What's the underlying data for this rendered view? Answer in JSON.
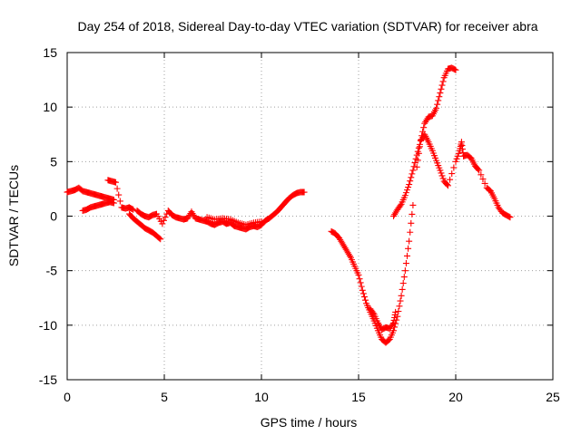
{
  "chart_data": {
    "type": "scatter",
    "title": "Day 254 of 2018, Sidereal Day-to-day VTEC variation (SDTVAR) for receiver abra",
    "xlabel": "GPS time / hours",
    "ylabel": "SDTVAR / TECUs",
    "xlim": [
      0,
      25
    ],
    "ylim": [
      -15,
      15
    ],
    "x_ticks": [
      0,
      5,
      10,
      15,
      20,
      25
    ],
    "x_tick_labels": [
      "0",
      "5",
      "10",
      "15",
      "20",
      "25"
    ],
    "y_ticks": [
      -15,
      -10,
      -5,
      0,
      5,
      10,
      15
    ],
    "y_tick_labels": [
      "-15",
      "-10",
      "-5",
      "0",
      "5",
      "10",
      "15"
    ],
    "grid": true,
    "marker": "plus",
    "series": [
      {
        "name": "SDTVAR",
        "color": "#ff0000",
        "points": [
          [
            0.0,
            2.2
          ],
          [
            0.2,
            2.3
          ],
          [
            0.4,
            2.4
          ],
          [
            0.6,
            2.6
          ],
          [
            0.8,
            2.3
          ],
          [
            1.0,
            2.2
          ],
          [
            1.2,
            2.1
          ],
          [
            1.4,
            2.0
          ],
          [
            1.6,
            1.9
          ],
          [
            1.8,
            1.8
          ],
          [
            2.0,
            1.7
          ],
          [
            2.2,
            1.6
          ],
          [
            2.4,
            1.5
          ],
          [
            0.8,
            0.5
          ],
          [
            1.0,
            0.6
          ],
          [
            1.2,
            0.8
          ],
          [
            1.4,
            0.9
          ],
          [
            1.6,
            1.0
          ],
          [
            1.8,
            1.1
          ],
          [
            2.0,
            1.2
          ],
          [
            2.2,
            1.3
          ],
          [
            2.4,
            1.2
          ],
          [
            2.1,
            3.3
          ],
          [
            2.3,
            3.2
          ],
          [
            2.5,
            3.1
          ],
          [
            2.8,
            0.8
          ],
          [
            3.0,
            0.7
          ],
          [
            3.2,
            0.8
          ],
          [
            3.4,
            0.6
          ],
          [
            3.2,
            0.2
          ],
          [
            3.4,
            -0.2
          ],
          [
            3.6,
            -0.5
          ],
          [
            3.8,
            -0.8
          ],
          [
            4.0,
            -1.1
          ],
          [
            4.2,
            -1.3
          ],
          [
            4.4,
            -1.5
          ],
          [
            4.6,
            -1.8
          ],
          [
            4.8,
            -2.1
          ],
          [
            3.6,
            0.5
          ],
          [
            3.8,
            0.2
          ],
          [
            4.0,
            0.0
          ],
          [
            4.2,
            -0.1
          ],
          [
            4.4,
            0.1
          ],
          [
            4.6,
            0.2
          ],
          [
            4.9,
            -0.7
          ],
          [
            5.2,
            0.5
          ],
          [
            5.4,
            0.1
          ],
          [
            5.6,
            -0.1
          ],
          [
            5.8,
            -0.2
          ],
          [
            6.0,
            -0.3
          ],
          [
            6.2,
            -0.2
          ],
          [
            6.4,
            0.4
          ],
          [
            6.6,
            -0.2
          ],
          [
            6.8,
            -0.3
          ],
          [
            7.0,
            -0.4
          ],
          [
            7.2,
            -0.5
          ],
          [
            7.4,
            -0.7
          ],
          [
            7.6,
            -0.8
          ],
          [
            7.8,
            -0.6
          ],
          [
            8.0,
            -0.5
          ],
          [
            8.2,
            -0.7
          ],
          [
            8.4,
            -0.6
          ],
          [
            8.6,
            -0.9
          ],
          [
            8.8,
            -1.0
          ],
          [
            9.0,
            -1.1
          ],
          [
            9.2,
            -1.2
          ],
          [
            9.4,
            -1.0
          ],
          [
            9.6,
            -0.9
          ],
          [
            9.8,
            -1.0
          ],
          [
            10.0,
            -0.8
          ],
          [
            10.2,
            -0.4
          ],
          [
            10.4,
            -0.2
          ],
          [
            10.6,
            0.1
          ],
          [
            10.8,
            0.4
          ],
          [
            11.0,
            0.8
          ],
          [
            11.2,
            1.2
          ],
          [
            11.4,
            1.6
          ],
          [
            11.6,
            1.9
          ],
          [
            11.8,
            2.1
          ],
          [
            12.0,
            2.2
          ],
          [
            12.2,
            2.2
          ],
          [
            7.2,
            -0.1
          ],
          [
            7.6,
            -0.3
          ],
          [
            8.0,
            -0.2
          ],
          [
            8.4,
            -0.3
          ],
          [
            8.8,
            -0.6
          ],
          [
            9.2,
            -0.8
          ],
          [
            9.6,
            -0.6
          ],
          [
            10.0,
            -0.5
          ],
          [
            13.6,
            -1.4
          ],
          [
            13.8,
            -1.6
          ],
          [
            14.0,
            -2.0
          ],
          [
            14.2,
            -2.6
          ],
          [
            14.4,
            -3.2
          ],
          [
            14.6,
            -3.8
          ],
          [
            14.8,
            -4.6
          ],
          [
            15.0,
            -5.4
          ],
          [
            15.2,
            -6.8
          ],
          [
            15.4,
            -8.0
          ],
          [
            15.6,
            -8.8
          ],
          [
            15.8,
            -9.6
          ],
          [
            16.0,
            -10.5
          ],
          [
            16.2,
            -11.3
          ],
          [
            16.4,
            -11.6
          ],
          [
            16.6,
            -11.3
          ],
          [
            16.8,
            -10.5
          ],
          [
            17.0,
            -9.2
          ],
          [
            17.2,
            -7.3
          ],
          [
            17.4,
            -5.0
          ],
          [
            17.6,
            -2.3
          ],
          [
            17.8,
            1.0
          ],
          [
            18.0,
            4.5
          ],
          [
            18.2,
            7.0
          ],
          [
            18.4,
            8.5
          ],
          [
            18.6,
            9.1
          ],
          [
            18.8,
            9.2
          ],
          [
            19.0,
            9.9
          ],
          [
            19.2,
            11.3
          ],
          [
            19.4,
            12.7
          ],
          [
            19.6,
            13.5
          ],
          [
            19.8,
            13.6
          ],
          [
            20.0,
            13.4
          ],
          [
            15.6,
            -8.5
          ],
          [
            15.8,
            -9.0
          ],
          [
            16.0,
            -9.8
          ],
          [
            16.2,
            -10.4
          ],
          [
            16.4,
            -10.2
          ],
          [
            16.6,
            -10.3
          ],
          [
            16.8,
            -9.8
          ],
          [
            16.9,
            -8.8
          ],
          [
            16.8,
            0.0
          ],
          [
            17.0,
            0.6
          ],
          [
            17.2,
            1.1
          ],
          [
            17.4,
            1.9
          ],
          [
            17.6,
            2.9
          ],
          [
            17.8,
            4.2
          ],
          [
            18.0,
            5.6
          ],
          [
            18.2,
            6.9
          ],
          [
            18.4,
            7.5
          ],
          [
            18.6,
            6.8
          ],
          [
            18.8,
            6.0
          ],
          [
            19.0,
            5.1
          ],
          [
            19.2,
            4.2
          ],
          [
            19.4,
            3.2
          ],
          [
            19.6,
            2.8
          ],
          [
            20.0,
            5.0
          ],
          [
            20.2,
            6.0
          ],
          [
            20.3,
            6.8
          ],
          [
            20.4,
            5.5
          ],
          [
            20.6,
            5.6
          ],
          [
            20.8,
            5.3
          ],
          [
            21.0,
            4.6
          ],
          [
            21.2,
            4.2
          ],
          [
            21.6,
            2.6
          ],
          [
            21.8,
            2.3
          ],
          [
            22.0,
            1.6
          ],
          [
            22.2,
            0.8
          ],
          [
            22.4,
            0.3
          ],
          [
            22.6,
            0.1
          ],
          [
            22.8,
            -0.1
          ]
        ]
      }
    ]
  }
}
